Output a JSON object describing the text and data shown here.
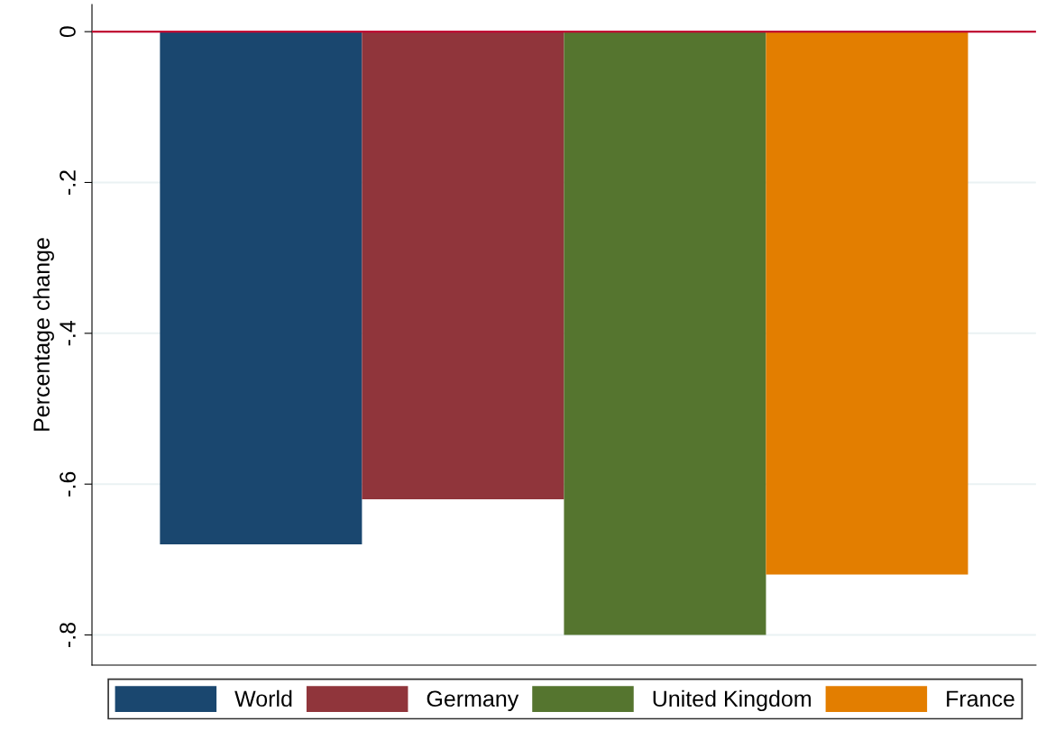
{
  "chart_data": {
    "type": "bar",
    "ylabel": "Percentage change",
    "categories": [
      null
    ],
    "series": [
      {
        "name": "World",
        "color": "#1a476f",
        "values": [
          -0.68
        ]
      },
      {
        "name": "Germany",
        "color": "#90353b",
        "values": [
          -0.62
        ]
      },
      {
        "name": "United Kingdom",
        "color": "#55752f",
        "values": [
          -0.8
        ]
      },
      {
        "name": "France",
        "color": "#e37e00",
        "values": [
          -0.72
        ]
      }
    ],
    "ylim": [
      -0.84,
      0.036
    ],
    "yticks": [
      {
        "value": 0,
        "label": "0"
      },
      {
        "value": -0.2,
        "label": "-.2"
      },
      {
        "value": -0.4,
        "label": "-.4"
      },
      {
        "value": -0.6,
        "label": "-.6"
      },
      {
        "value": -0.8,
        "label": "-.8"
      }
    ],
    "grid": "y",
    "legend": "bottom",
    "tick_labels": "y",
    "ref_lines": [
      {
        "axis": "y",
        "value": 0,
        "color": "#c10534"
      }
    ]
  }
}
